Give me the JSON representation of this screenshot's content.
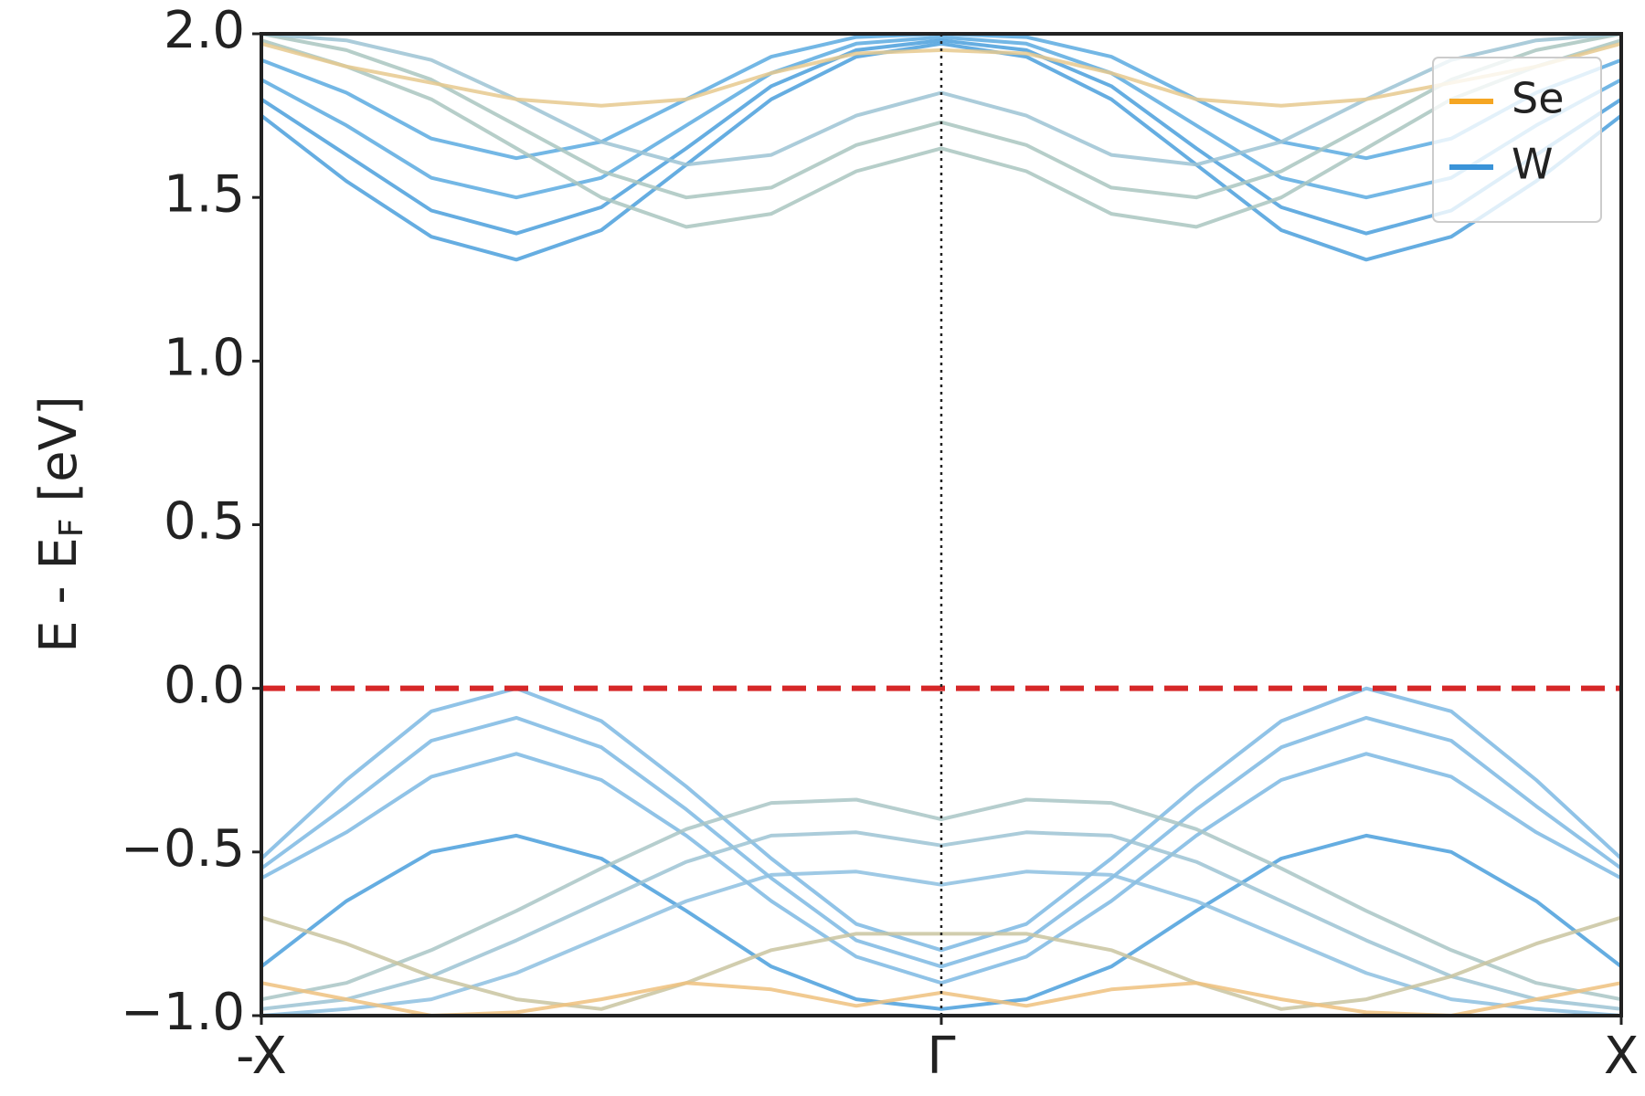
{
  "chart_data": {
    "type": "bands",
    "ylabel_parts": [
      "E - E",
      "F",
      " [eV]"
    ],
    "xlim": [
      -1,
      1
    ],
    "xticks": [
      {
        "value": -1,
        "label": "-X"
      },
      {
        "value": 0,
        "label": "Γ"
      },
      {
        "value": 1,
        "label": "X"
      }
    ],
    "ylim": [
      -1,
      2
    ],
    "yticks": [
      {
        "value": -1,
        "label": "−1.0"
      },
      {
        "value": -0.5,
        "label": "−0.5"
      },
      {
        "value": 0,
        "label": "0.0"
      },
      {
        "value": 0.5,
        "label": "0.5"
      },
      {
        "value": 1,
        "label": "1.0"
      },
      {
        "value": 1.5,
        "label": "1.5"
      },
      {
        "value": 2,
        "label": "2.0"
      }
    ],
    "fermi_level": 0,
    "fermi_color": "#d62728",
    "legend_position": "upper right",
    "legend": [
      {
        "name": "Se",
        "color": "#f5a623"
      },
      {
        "name": "W",
        "color": "#3a93d8"
      }
    ],
    "x": [
      -1,
      -0.875,
      -0.75,
      -0.625,
      -0.5,
      -0.375,
      -0.25,
      -0.125,
      0,
      0.125,
      0.25,
      0.375,
      0.5,
      0.625,
      0.75,
      0.875,
      1
    ],
    "bands": [
      {
        "color": "#7db9e3",
        "values": [
          -0.52,
          -0.28,
          -0.07,
          0.0,
          -0.1,
          -0.3,
          -0.52,
          -0.72,
          -0.8,
          -0.72,
          -0.52,
          -0.3,
          -0.1,
          0.0,
          -0.07,
          -0.28,
          -0.52
        ]
      },
      {
        "color": "#7db9e3",
        "values": [
          -0.55,
          -0.36,
          -0.16,
          -0.09,
          -0.18,
          -0.37,
          -0.58,
          -0.77,
          -0.85,
          -0.77,
          -0.58,
          -0.37,
          -0.18,
          -0.09,
          -0.16,
          -0.36,
          -0.55
        ]
      },
      {
        "color": "#7db9e3",
        "values": [
          -0.58,
          -0.44,
          -0.27,
          -0.2,
          -0.28,
          -0.45,
          -0.65,
          -0.82,
          -0.9,
          -0.82,
          -0.65,
          -0.45,
          -0.28,
          -0.2,
          -0.27,
          -0.44,
          -0.58
        ]
      },
      {
        "color": "#4a9fdc",
        "values": [
          -0.85,
          -0.65,
          -0.5,
          -0.45,
          -0.52,
          -0.68,
          -0.85,
          -0.95,
          -0.98,
          -0.95,
          -0.85,
          -0.68,
          -0.52,
          -0.45,
          -0.5,
          -0.65,
          -0.85
        ]
      },
      {
        "color": "#a9c6c6",
        "values": [
          -0.95,
          -0.9,
          -0.8,
          -0.68,
          -0.55,
          -0.43,
          -0.35,
          -0.34,
          -0.4,
          -0.34,
          -0.35,
          -0.43,
          -0.55,
          -0.68,
          -0.8,
          -0.9,
          -0.95
        ]
      },
      {
        "color": "#9cc3d4",
        "values": [
          -0.98,
          -0.95,
          -0.88,
          -0.77,
          -0.65,
          -0.53,
          -0.45,
          -0.44,
          -0.48,
          -0.44,
          -0.45,
          -0.53,
          -0.65,
          -0.77,
          -0.88,
          -0.95,
          -0.98
        ]
      },
      {
        "color": "#8dbfe0",
        "values": [
          -1,
          -0.98,
          -0.95,
          -0.87,
          -0.76,
          -0.65,
          -0.57,
          -0.56,
          -0.6,
          -0.56,
          -0.57,
          -0.65,
          -0.76,
          -0.87,
          -0.95,
          -0.98,
          -1
        ]
      },
      {
        "color": "#c9c4a0",
        "values": [
          -0.7,
          -0.78,
          -0.88,
          -0.95,
          -0.98,
          -0.9,
          -0.8,
          -0.75,
          -0.75,
          -0.75,
          -0.8,
          -0.9,
          -0.98,
          -0.95,
          -0.88,
          -0.78,
          -0.7
        ]
      },
      {
        "color": "#eec17e",
        "values": [
          -0.9,
          -0.95,
          -1,
          -0.99,
          -0.95,
          -0.9,
          -0.92,
          -0.97,
          -0.93,
          -0.97,
          -0.92,
          -0.9,
          -0.95,
          -0.99,
          -1,
          -0.95,
          -0.9
        ]
      },
      {
        "color": "#4a9fdc",
        "values": [
          1.75,
          1.55,
          1.38,
          1.31,
          1.4,
          1.6,
          1.8,
          1.93,
          1.97,
          1.93,
          1.8,
          1.6,
          1.4,
          1.31,
          1.38,
          1.55,
          1.75
        ]
      },
      {
        "color": "#4a9fdc",
        "values": [
          1.8,
          1.63,
          1.46,
          1.39,
          1.47,
          1.65,
          1.84,
          1.95,
          1.98,
          1.95,
          1.84,
          1.65,
          1.47,
          1.39,
          1.46,
          1.63,
          1.8
        ]
      },
      {
        "color": "#5aaae0",
        "values": [
          1.86,
          1.72,
          1.56,
          1.5,
          1.56,
          1.72,
          1.88,
          1.97,
          1.99,
          1.97,
          1.88,
          1.72,
          1.56,
          1.5,
          1.56,
          1.72,
          1.86
        ]
      },
      {
        "color": "#5aaae0",
        "values": [
          1.92,
          1.82,
          1.68,
          1.62,
          1.67,
          1.8,
          1.93,
          1.99,
          2.0,
          1.99,
          1.93,
          1.8,
          1.67,
          1.62,
          1.68,
          1.82,
          1.92
        ]
      },
      {
        "color": "#a9c6c0",
        "values": [
          1.98,
          1.9,
          1.8,
          1.65,
          1.5,
          1.41,
          1.45,
          1.58,
          1.65,
          1.58,
          1.45,
          1.41,
          1.5,
          1.65,
          1.8,
          1.9,
          1.98
        ]
      },
      {
        "color": "#a9c6c0",
        "values": [
          2.0,
          1.95,
          1.86,
          1.72,
          1.58,
          1.5,
          1.53,
          1.66,
          1.73,
          1.66,
          1.53,
          1.5,
          1.58,
          1.72,
          1.86,
          1.95,
          2.0
        ]
      },
      {
        "color": "#9cc3d4",
        "values": [
          2.0,
          1.98,
          1.92,
          1.8,
          1.67,
          1.6,
          1.63,
          1.75,
          1.82,
          1.75,
          1.63,
          1.6,
          1.67,
          1.8,
          1.92,
          1.98,
          2.0
        ]
      },
      {
        "color": "#e6c98e",
        "values": [
          1.97,
          1.9,
          1.85,
          1.8,
          1.78,
          1.8,
          1.88,
          1.94,
          1.95,
          1.94,
          1.88,
          1.8,
          1.78,
          1.8,
          1.85,
          1.9,
          1.97
        ]
      }
    ]
  }
}
